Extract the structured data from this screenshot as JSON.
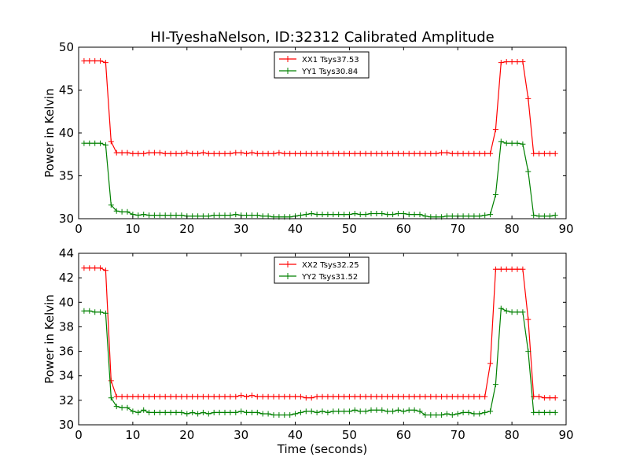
{
  "figure": {
    "title": "HI-TyeshaNelson, ID:32312 Calibrated Amplitude"
  },
  "chart_data": [
    {
      "type": "line",
      "title": "HI-TyeshaNelson, ID:32312 Calibrated Amplitude",
      "xlabel": "",
      "ylabel": "Power in Kelvin",
      "xlim": [
        0,
        90
      ],
      "ylim": [
        30,
        50
      ],
      "xticks": [
        0,
        10,
        20,
        30,
        40,
        50,
        60,
        70,
        80,
        90
      ],
      "yticks": [
        30,
        35,
        40,
        45,
        50
      ],
      "grid": false,
      "legend": "top-center",
      "x": [
        1,
        2,
        3,
        4,
        5,
        6,
        7,
        8,
        9,
        10,
        11,
        12,
        13,
        14,
        15,
        16,
        17,
        18,
        19,
        20,
        21,
        22,
        23,
        24,
        25,
        26,
        27,
        28,
        29,
        30,
        31,
        32,
        33,
        34,
        35,
        36,
        37,
        38,
        39,
        40,
        41,
        42,
        43,
        44,
        45,
        46,
        47,
        48,
        49,
        50,
        51,
        52,
        53,
        54,
        55,
        56,
        57,
        58,
        59,
        60,
        61,
        62,
        63,
        64,
        65,
        66,
        67,
        68,
        69,
        70,
        71,
        72,
        73,
        74,
        75,
        76,
        77,
        78,
        79,
        80,
        81,
        82,
        83,
        84,
        85,
        86,
        87,
        88
      ],
      "series": [
        {
          "name": "XX1 Tsys37.53",
          "color": "#ff0000",
          "values": [
            48.4,
            48.4,
            48.4,
            48.4,
            48.2,
            39.0,
            37.7,
            37.7,
            37.7,
            37.6,
            37.6,
            37.6,
            37.7,
            37.7,
            37.7,
            37.6,
            37.6,
            37.6,
            37.6,
            37.7,
            37.6,
            37.6,
            37.7,
            37.6,
            37.6,
            37.6,
            37.6,
            37.6,
            37.7,
            37.7,
            37.6,
            37.7,
            37.6,
            37.6,
            37.6,
            37.6,
            37.7,
            37.6,
            37.6,
            37.6,
            37.6,
            37.6,
            37.6,
            37.6,
            37.6,
            37.6,
            37.6,
            37.6,
            37.6,
            37.6,
            37.6,
            37.6,
            37.6,
            37.6,
            37.6,
            37.6,
            37.6,
            37.6,
            37.6,
            37.6,
            37.6,
            37.6,
            37.6,
            37.6,
            37.6,
            37.6,
            37.7,
            37.7,
            37.6,
            37.6,
            37.6,
            37.6,
            37.6,
            37.6,
            37.6,
            37.6,
            40.4,
            48.2,
            48.3,
            48.3,
            48.3,
            48.3,
            44.0,
            37.6,
            37.6,
            37.6,
            37.6,
            37.6
          ]
        },
        {
          "name": "YY1 Tsys30.84",
          "color": "#008000",
          "values": [
            38.8,
            38.8,
            38.8,
            38.8,
            38.6,
            31.6,
            30.9,
            30.8,
            30.8,
            30.5,
            30.4,
            30.5,
            30.4,
            30.4,
            30.4,
            30.4,
            30.4,
            30.4,
            30.4,
            30.3,
            30.3,
            30.3,
            30.3,
            30.3,
            30.4,
            30.4,
            30.4,
            30.4,
            30.5,
            30.4,
            30.4,
            30.4,
            30.4,
            30.3,
            30.3,
            30.2,
            30.2,
            30.2,
            30.2,
            30.3,
            30.4,
            30.5,
            30.6,
            30.5,
            30.5,
            30.5,
            30.5,
            30.5,
            30.5,
            30.5,
            30.6,
            30.5,
            30.5,
            30.6,
            30.6,
            30.6,
            30.5,
            30.5,
            30.6,
            30.6,
            30.5,
            30.5,
            30.5,
            30.3,
            30.2,
            30.2,
            30.2,
            30.3,
            30.3,
            30.3,
            30.3,
            30.3,
            30.3,
            30.3,
            30.4,
            30.5,
            32.8,
            39.0,
            38.8,
            38.8,
            38.8,
            38.7,
            35.5,
            30.4,
            30.3,
            30.3,
            30.3,
            30.4
          ]
        }
      ]
    },
    {
      "type": "line",
      "title": "",
      "xlabel": "Time (seconds)",
      "ylabel": "Power in Kelvin",
      "xlim": [
        0,
        90
      ],
      "ylim": [
        30,
        44
      ],
      "xticks": [
        0,
        10,
        20,
        30,
        40,
        50,
        60,
        70,
        80,
        90
      ],
      "yticks": [
        30,
        32,
        34,
        36,
        38,
        40,
        42,
        44
      ],
      "grid": false,
      "legend": "top-center",
      "x": [
        1,
        2,
        3,
        4,
        5,
        6,
        7,
        8,
        9,
        10,
        11,
        12,
        13,
        14,
        15,
        16,
        17,
        18,
        19,
        20,
        21,
        22,
        23,
        24,
        25,
        26,
        27,
        28,
        29,
        30,
        31,
        32,
        33,
        34,
        35,
        36,
        37,
        38,
        39,
        40,
        41,
        42,
        43,
        44,
        45,
        46,
        47,
        48,
        49,
        50,
        51,
        52,
        53,
        54,
        55,
        56,
        57,
        58,
        59,
        60,
        61,
        62,
        63,
        64,
        65,
        66,
        67,
        68,
        69,
        70,
        71,
        72,
        73,
        74,
        75,
        76,
        77,
        78,
        79,
        80,
        81,
        82,
        83,
        84,
        85,
        86,
        87,
        88
      ],
      "series": [
        {
          "name": "XX2 Tsys32.25",
          "color": "#ff0000",
          "values": [
            42.8,
            42.8,
            42.8,
            42.8,
            42.6,
            33.6,
            32.3,
            32.3,
            32.3,
            32.3,
            32.3,
            32.3,
            32.3,
            32.3,
            32.3,
            32.3,
            32.3,
            32.3,
            32.3,
            32.3,
            32.3,
            32.3,
            32.3,
            32.3,
            32.3,
            32.3,
            32.3,
            32.3,
            32.3,
            32.4,
            32.3,
            32.4,
            32.3,
            32.3,
            32.3,
            32.3,
            32.3,
            32.3,
            32.3,
            32.3,
            32.3,
            32.2,
            32.2,
            32.3,
            32.3,
            32.3,
            32.3,
            32.3,
            32.3,
            32.3,
            32.3,
            32.3,
            32.3,
            32.3,
            32.3,
            32.3,
            32.3,
            32.3,
            32.3,
            32.3,
            32.3,
            32.3,
            32.3,
            32.3,
            32.3,
            32.3,
            32.3,
            32.3,
            32.3,
            32.3,
            32.3,
            32.3,
            32.3,
            32.3,
            32.3,
            35.0,
            42.7,
            42.7,
            42.7,
            42.7,
            42.7,
            42.7,
            38.6,
            32.3,
            32.3,
            32.2,
            32.2,
            32.2
          ]
        },
        {
          "name": "YY2 Tsys31.52",
          "color": "#008000",
          "values": [
            39.3,
            39.3,
            39.2,
            39.2,
            39.1,
            32.2,
            31.5,
            31.4,
            31.4,
            31.1,
            31.0,
            31.2,
            31.0,
            31.0,
            31.0,
            31.0,
            31.0,
            31.0,
            31.0,
            30.9,
            31.0,
            30.9,
            31.0,
            30.9,
            31.0,
            31.0,
            31.0,
            31.0,
            31.0,
            31.1,
            31.0,
            31.0,
            31.0,
            30.9,
            30.9,
            30.8,
            30.8,
            30.8,
            30.8,
            30.9,
            31.0,
            31.1,
            31.1,
            31.0,
            31.1,
            31.0,
            31.1,
            31.1,
            31.1,
            31.1,
            31.2,
            31.1,
            31.1,
            31.2,
            31.2,
            31.2,
            31.1,
            31.1,
            31.2,
            31.1,
            31.2,
            31.2,
            31.1,
            30.8,
            30.8,
            30.8,
            30.8,
            30.9,
            30.8,
            30.9,
            31.0,
            31.0,
            30.9,
            30.9,
            31.0,
            31.1,
            33.3,
            39.5,
            39.3,
            39.2,
            39.2,
            39.2,
            36.0,
            31.0,
            31.0,
            31.0,
            31.0,
            31.0
          ]
        }
      ]
    }
  ]
}
